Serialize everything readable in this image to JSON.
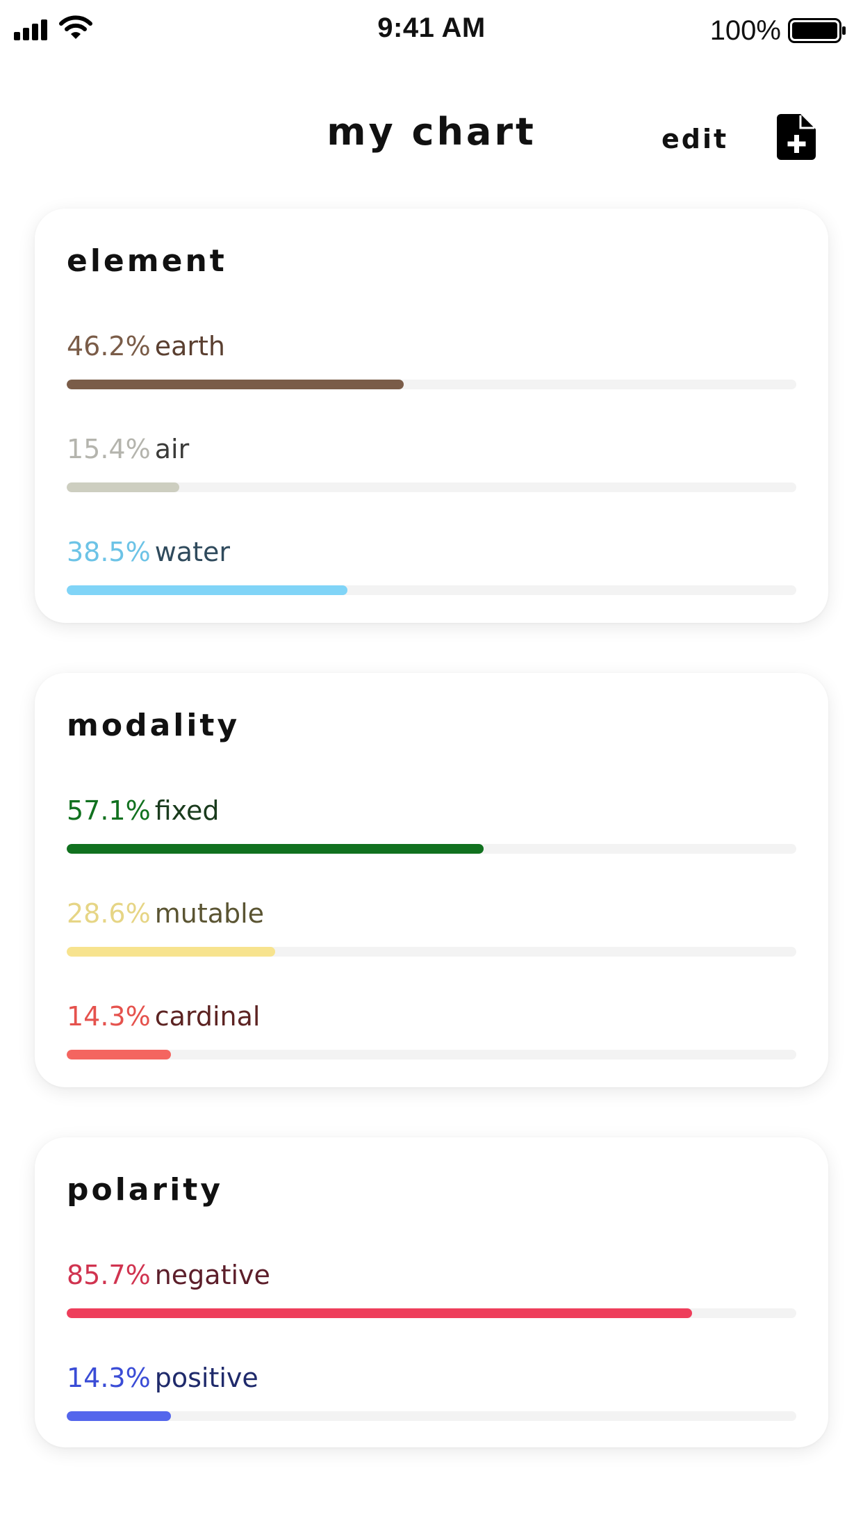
{
  "status_bar": {
    "time": "9:41 AM",
    "battery_text": "100%",
    "battery_level": 1.0
  },
  "header": {
    "title": "my chart",
    "edit_label": "edit",
    "new_icon": "file-plus-icon"
  },
  "colors": {
    "earth": "#7a5c48",
    "air": "#cdcec0",
    "water": "#80d4f7",
    "fixed": "#11711f",
    "mutable": "#f7e38e",
    "cardinal": "#f46560",
    "negative": "#ee3e5b",
    "positive": "#5466ec"
  },
  "cards": [
    {
      "title": "element",
      "items": [
        {
          "percent": "46.2%",
          "name": "earth",
          "value": 46.2,
          "bar_color": "#7a5c48",
          "pct_color": "#7a5c48",
          "name_color": "#5a3f30"
        },
        {
          "percent": "15.4%",
          "name": "air",
          "value": 15.4,
          "bar_color": "#cdcec0",
          "pct_color": "#b4b4ad",
          "name_color": "#3a3a38"
        },
        {
          "percent": "38.5%",
          "name": "water",
          "value": 38.5,
          "bar_color": "#80d4f7",
          "pct_color": "#6cc3e6",
          "name_color": "#2f4a5c"
        }
      ]
    },
    {
      "title": "modality",
      "items": [
        {
          "percent": "57.1%",
          "name": "fixed",
          "value": 57.1,
          "bar_color": "#11711f",
          "pct_color": "#11711f",
          "name_color": "#1a3b1d"
        },
        {
          "percent": "28.6%",
          "name": "mutable",
          "value": 28.6,
          "bar_color": "#f7e38e",
          "pct_color": "#e6d585",
          "name_color": "#5a5432"
        },
        {
          "percent": "14.3%",
          "name": "cardinal",
          "value": 14.3,
          "bar_color": "#f46560",
          "pct_color": "#e5524d",
          "name_color": "#5c2322"
        }
      ]
    },
    {
      "title": "polarity",
      "items": [
        {
          "percent": "85.7%",
          "name": "negative",
          "value": 85.7,
          "bar_color": "#ee3e5b",
          "pct_color": "#d0334f",
          "name_color": "#5c1e2a"
        },
        {
          "percent": "14.3%",
          "name": "positive",
          "value": 14.3,
          "bar_color": "#5466ec",
          "pct_color": "#3a4cd6",
          "name_color": "#1f2a6b"
        }
      ]
    }
  ]
}
